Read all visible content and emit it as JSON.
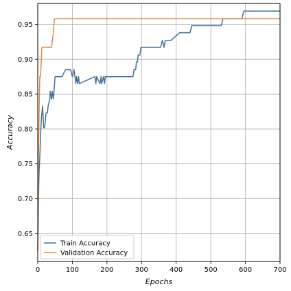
{
  "chart_data": {
    "type": "line",
    "title": "",
    "xlabel": "Epochs",
    "ylabel": "Accuracy",
    "xlim": [
      0,
      700
    ],
    "ylim": [
      0.61,
      0.98
    ],
    "xticks": [
      0,
      100,
      200,
      300,
      400,
      500,
      600,
      700
    ],
    "yticks": [
      0.65,
      0.7,
      0.75,
      0.8,
      0.85,
      0.9,
      0.95
    ],
    "ytick_labels": [
      "0.65",
      "0.70",
      "0.75",
      "0.80",
      "0.85",
      "0.90",
      "0.95"
    ],
    "grid": true,
    "legend_position": "lower-left",
    "series": [
      {
        "name": "Train Accuracy",
        "color": "#4a6f95",
        "x": [
          0,
          1,
          2,
          3,
          4,
          5,
          6,
          8,
          10,
          12,
          14,
          17,
          20,
          24,
          28,
          30,
          35,
          36,
          40,
          42,
          45,
          47,
          50,
          55,
          58,
          65,
          70,
          80,
          95,
          100,
          105,
          110,
          112,
          115,
          118,
          120,
          165,
          168,
          170,
          180,
          183,
          185,
          190,
          193,
          195,
          200,
          205,
          275,
          278,
          280,
          283,
          285,
          288,
          290,
          295,
          298,
          300,
          305,
          310,
          315,
          320,
          355,
          360,
          365,
          368,
          370,
          375,
          380,
          385,
          410,
          415,
          440,
          445,
          480,
          485,
          490,
          520,
          525,
          530,
          535,
          540,
          590,
          595,
          600,
          700
        ],
        "values": [
          0.625,
          0.65,
          0.69,
          0.72,
          0.74,
          0.75,
          0.76,
          0.79,
          0.81,
          0.823,
          0.833,
          0.802,
          0.802,
          0.823,
          0.823,
          0.833,
          0.843,
          0.854,
          0.843,
          0.854,
          0.843,
          0.854,
          0.875,
          0.875,
          0.875,
          0.875,
          0.875,
          0.885,
          0.885,
          0.875,
          0.885,
          0.865,
          0.875,
          0.865,
          0.875,
          0.865,
          0.875,
          0.865,
          0.875,
          0.865,
          0.875,
          0.865,
          0.875,
          0.865,
          0.875,
          0.875,
          0.875,
          0.875,
          0.885,
          0.885,
          0.885,
          0.896,
          0.896,
          0.906,
          0.906,
          0.917,
          0.917,
          0.917,
          0.917,
          0.917,
          0.917,
          0.917,
          0.927,
          0.917,
          0.927,
          0.927,
          0.927,
          0.927,
          0.927,
          0.938,
          0.938,
          0.938,
          0.948,
          0.948,
          0.948,
          0.948,
          0.948,
          0.948,
          0.948,
          0.958,
          0.958,
          0.958,
          0.969,
          0.969,
          0.969
        ]
      },
      {
        "name": "Validation Accuracy",
        "color": "#e08a45",
        "x": [
          0,
          1,
          2,
          3,
          4,
          5,
          6,
          8,
          10,
          12,
          15,
          40,
          45,
          48,
          700
        ],
        "values": [
          0.625,
          0.69,
          0.76,
          0.79,
          0.83,
          0.854,
          0.875,
          0.875,
          0.896,
          0.917,
          0.917,
          0.917,
          0.938,
          0.958,
          0.958
        ]
      }
    ]
  }
}
